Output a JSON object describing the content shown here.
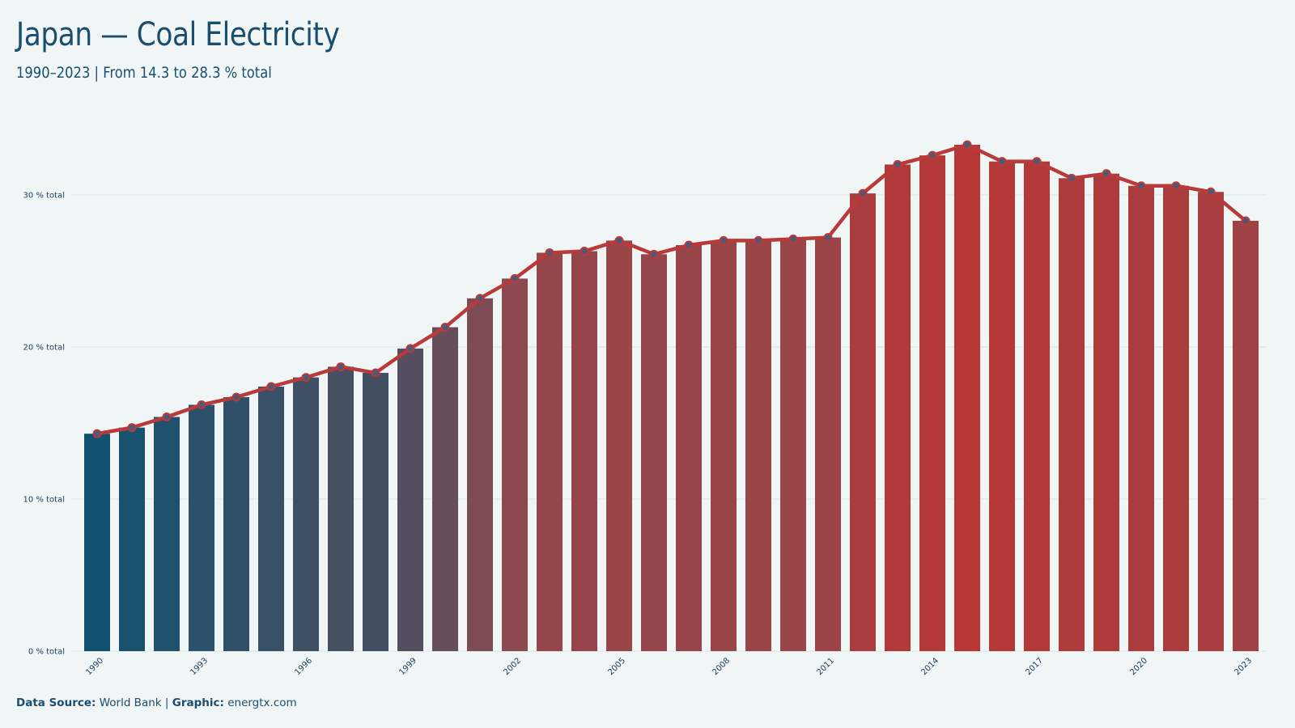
{
  "title": "Japan — Coal Electricity",
  "subtitle": "1990–2023 | From 14.3 to 28.3 % total",
  "caption": {
    "source_label": "Data Source:",
    "source_value": "World Bank",
    "separator": "|",
    "graphic_label": "Graphic:",
    "graphic_value": "energtx.com"
  },
  "colors": {
    "background": "#f0f6f6",
    "text": "#1a4d6e",
    "line": "#b83a3a",
    "bar_low": "#13526f",
    "bar_mid": "#8f4a4f",
    "bar_high": "#b83636",
    "marker_fill": "#4c5a78"
  },
  "chart_data": {
    "type": "bar",
    "title": "Japan — Coal Electricity",
    "subtitle": "1990–2023 | From 14.3 to 28.3 % total",
    "xlabel": "",
    "ylabel": "",
    "x": [
      1990,
      1991,
      1992,
      1993,
      1994,
      1995,
      1996,
      1997,
      1998,
      1999,
      2000,
      2001,
      2002,
      2003,
      2004,
      2005,
      2006,
      2007,
      2008,
      2009,
      2010,
      2011,
      2012,
      2013,
      2014,
      2015,
      2016,
      2017,
      2018,
      2019,
      2020,
      2021,
      2022,
      2023
    ],
    "values": [
      14.3,
      14.7,
      15.4,
      16.2,
      16.7,
      17.4,
      18.0,
      18.7,
      18.3,
      19.9,
      21.3,
      23.2,
      24.5,
      26.2,
      26.3,
      27.0,
      26.1,
      26.7,
      27.0,
      27.0,
      27.1,
      27.2,
      30.1,
      32.0,
      32.6,
      33.3,
      32.2,
      32.2,
      31.1,
      31.4,
      30.6,
      30.6,
      30.2,
      28.3
    ],
    "x_tick_labels": [
      "1990",
      "1993",
      "1996",
      "1999",
      "2002",
      "2005",
      "2008",
      "2011",
      "2014",
      "2017",
      "2020",
      "2023"
    ],
    "y_ticks": [
      0,
      10,
      20,
      30
    ],
    "y_tick_labels": [
      "0 % total",
      "10 % total",
      "20 % total",
      "30 % total"
    ],
    "ylim": [
      0,
      33.3
    ],
    "overlay": "line with markers",
    "grid": "horizontal",
    "legend": "none"
  }
}
